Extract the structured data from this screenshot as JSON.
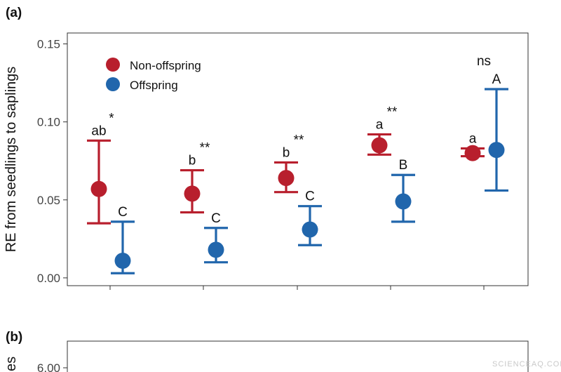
{
  "chart_data": [
    {
      "panel": "(a)",
      "type": "scatter",
      "ylabel": "RE from seedlings to saplings",
      "xlabel": "",
      "ylim": [
        -0.005,
        0.157
      ],
      "yticks": [
        "0.00",
        "0.05",
        "0.10",
        "0.15"
      ],
      "grid": false,
      "legend_position": "top-left",
      "groups": 5,
      "series": [
        {
          "name": "Non-offspring",
          "color": "#B81F2D",
          "points": [
            {
              "group": 1,
              "mean": 0.057,
              "lower": 0.035,
              "upper": 0.088,
              "letter": "ab"
            },
            {
              "group": 2,
              "mean": 0.054,
              "lower": 0.042,
              "upper": 0.069,
              "letter": "b"
            },
            {
              "group": 3,
              "mean": 0.064,
              "lower": 0.055,
              "upper": 0.074,
              "letter": "b"
            },
            {
              "group": 4,
              "mean": 0.085,
              "lower": 0.079,
              "upper": 0.092,
              "letter": "a"
            },
            {
              "group": 5,
              "mean": 0.08,
              "lower": 0.078,
              "upper": 0.083,
              "letter": "a"
            }
          ]
        },
        {
          "name": "Offspring",
          "color": "#2166AC",
          "points": [
            {
              "group": 1,
              "mean": 0.011,
              "lower": 0.003,
              "upper": 0.036,
              "letter": "C"
            },
            {
              "group": 2,
              "mean": 0.018,
              "lower": 0.01,
              "upper": 0.032,
              "letter": "C"
            },
            {
              "group": 3,
              "mean": 0.031,
              "lower": 0.021,
              "upper": 0.046,
              "letter": "C"
            },
            {
              "group": 4,
              "mean": 0.049,
              "lower": 0.036,
              "upper": 0.066,
              "letter": "B"
            },
            {
              "group": 5,
              "mean": 0.082,
              "lower": 0.056,
              "upper": 0.121,
              "letter": "A"
            }
          ]
        }
      ],
      "significance": [
        "*",
        "**",
        "**",
        "**",
        "ns"
      ]
    },
    {
      "panel": "(b)",
      "type": "scatter",
      "ylabel_visible": "es",
      "yticks": [
        "6.00"
      ]
    }
  ],
  "watermark": "SCIENCEAQ.COM"
}
